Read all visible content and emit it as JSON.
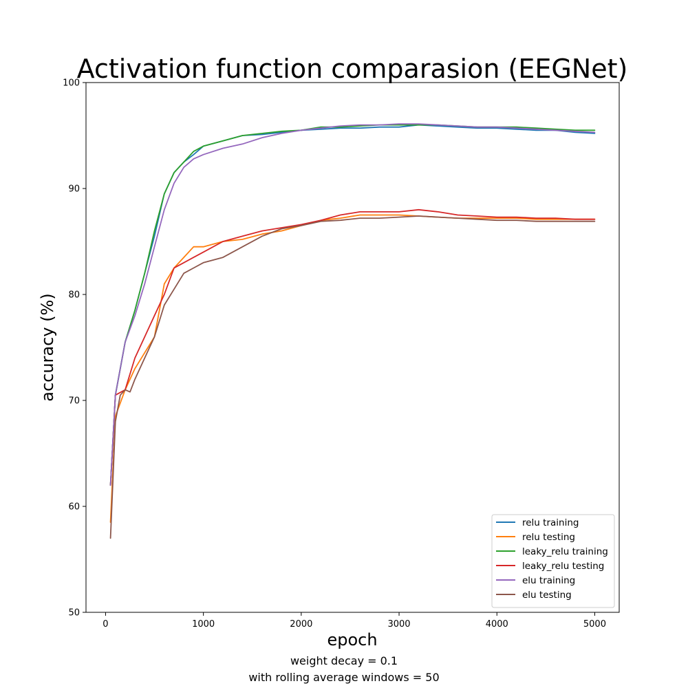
{
  "chart_data": {
    "type": "line",
    "title": "Activation function comparasion (EEGNet)",
    "xlabel": "epoch",
    "ylabel": "accuracy (%)",
    "captions": [
      "weight decay = 0.1",
      "with rolling average windows = 50"
    ],
    "xlim": [
      -200,
      5250
    ],
    "ylim": [
      50,
      100
    ],
    "xticks": [
      0,
      1000,
      2000,
      3000,
      4000,
      5000
    ],
    "yticks": [
      50,
      60,
      70,
      80,
      90,
      100
    ],
    "grid": false,
    "legend_position": "lower-right",
    "series": [
      {
        "name": "relu training",
        "color": "#1f77b4",
        "x": [
          50,
          100,
          200,
          300,
          400,
          500,
          600,
          700,
          800,
          900,
          1000,
          1200,
          1400,
          1600,
          1800,
          2000,
          2200,
          2400,
          2600,
          2800,
          3000,
          3200,
          3400,
          3600,
          3800,
          4000,
          4200,
          4400,
          4600,
          4800,
          5000
        ],
        "y": [
          62,
          70.5,
          75.5,
          78.5,
          82,
          85.5,
          89.5,
          91.5,
          92.5,
          93.2,
          94,
          94.5,
          95,
          95.1,
          95.3,
          95.5,
          95.6,
          95.7,
          95.7,
          95.8,
          95.8,
          96,
          95.9,
          95.8,
          95.7,
          95.7,
          95.6,
          95.5,
          95.5,
          95.3,
          95.2
        ]
      },
      {
        "name": "relu testing",
        "color": "#ff7f0e",
        "x": [
          50,
          100,
          200,
          300,
          400,
          500,
          550,
          600,
          700,
          800,
          900,
          1000,
          1200,
          1400,
          1600,
          1800,
          2000,
          2200,
          2400,
          2600,
          2800,
          3000,
          3200,
          3400,
          3600,
          3800,
          4000,
          4200,
          4400,
          4600,
          4800,
          5000
        ],
        "y": [
          58.5,
          68.5,
          71,
          73,
          74.5,
          76,
          78.5,
          81,
          82.5,
          83.5,
          84.5,
          84.5,
          85,
          85.2,
          85.7,
          86,
          86.5,
          87,
          87.2,
          87.5,
          87.5,
          87.5,
          87.4,
          87.3,
          87.2,
          87.2,
          87.2,
          87.2,
          87.1,
          87.1,
          87.1,
          87.1
        ]
      },
      {
        "name": "leaky_relu training",
        "color": "#2ca02c",
        "x": [
          50,
          100,
          200,
          300,
          400,
          500,
          600,
          700,
          800,
          900,
          1000,
          1200,
          1400,
          1600,
          1800,
          2000,
          2200,
          2400,
          2600,
          2800,
          3000,
          3200,
          3400,
          3600,
          3800,
          4000,
          4200,
          4400,
          4600,
          4800,
          5000
        ],
        "y": [
          62,
          70.5,
          75.5,
          78.5,
          82,
          86,
          89.5,
          91.5,
          92.5,
          93.5,
          94,
          94.5,
          95,
          95.2,
          95.4,
          95.5,
          95.8,
          95.8,
          95.9,
          96,
          96,
          96,
          96,
          95.9,
          95.8,
          95.8,
          95.8,
          95.7,
          95.6,
          95.5,
          95.5
        ]
      },
      {
        "name": "leaky_relu testing",
        "color": "#d62728",
        "x": [
          50,
          100,
          200,
          300,
          400,
          500,
          600,
          700,
          800,
          900,
          1000,
          1200,
          1400,
          1600,
          1800,
          2000,
          2200,
          2400,
          2600,
          2800,
          3000,
          3200,
          3400,
          3600,
          3800,
          4000,
          4200,
          4400,
          4600,
          4800,
          5000
        ],
        "y": [
          62,
          70.5,
          71,
          74,
          76,
          78,
          80,
          82.5,
          83,
          83.5,
          84,
          85,
          85.5,
          86,
          86.3,
          86.6,
          87,
          87.5,
          87.8,
          87.8,
          87.8,
          88,
          87.8,
          87.5,
          87.4,
          87.3,
          87.3,
          87.2,
          87.2,
          87.1,
          87.1
        ]
      },
      {
        "name": "elu training",
        "color": "#9467bd",
        "x": [
          50,
          100,
          200,
          300,
          400,
          500,
          600,
          700,
          800,
          900,
          1000,
          1200,
          1400,
          1600,
          1800,
          2000,
          2200,
          2400,
          2600,
          2800,
          3000,
          3200,
          3400,
          3600,
          3800,
          4000,
          4200,
          4400,
          4600,
          4800,
          5000
        ],
        "y": [
          62,
          70.5,
          75.5,
          78,
          81,
          84.5,
          88,
          90.5,
          92,
          92.8,
          93.2,
          93.8,
          94.2,
          94.8,
          95.2,
          95.5,
          95.7,
          95.9,
          96,
          96,
          96.1,
          96.1,
          96,
          95.9,
          95.8,
          95.8,
          95.7,
          95.6,
          95.5,
          95.4,
          95.3
        ]
      },
      {
        "name": "elu testing",
        "color": "#8c564b",
        "x": [
          50,
          100,
          150,
          200,
          250,
          300,
          400,
          500,
          600,
          700,
          800,
          900,
          1000,
          1200,
          1400,
          1600,
          1800,
          2000,
          2200,
          2400,
          2600,
          2800,
          3000,
          3200,
          3400,
          3600,
          3800,
          4000,
          4200,
          4400,
          4600,
          4800,
          5000
        ],
        "y": [
          57,
          68,
          70.5,
          71,
          70.8,
          72,
          74,
          76,
          79,
          80.5,
          82,
          82.5,
          83,
          83.5,
          84.5,
          85.5,
          86.2,
          86.5,
          86.9,
          87,
          87.2,
          87.2,
          87.3,
          87.4,
          87.3,
          87.2,
          87.1,
          87,
          87,
          86.9,
          86.9,
          86.9,
          86.9
        ]
      }
    ]
  }
}
